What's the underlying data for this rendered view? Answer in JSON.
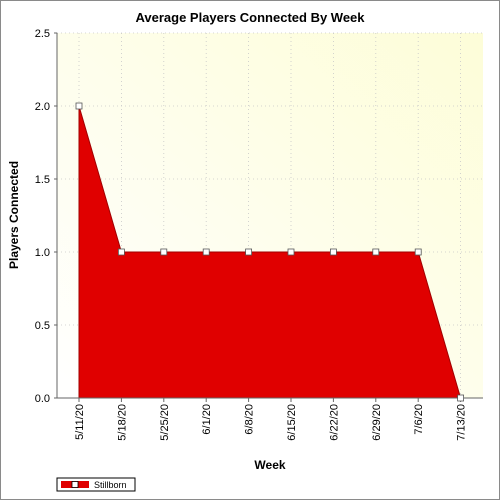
{
  "chart_data": {
    "type": "area",
    "title": "Average Players Connected By Week",
    "xlabel": "Week",
    "ylabel": "Players Connected",
    "categories": [
      "5/11/20",
      "5/18/20",
      "5/25/20",
      "6/1/20",
      "6/8/20",
      "6/15/20",
      "6/22/20",
      "6/29/20",
      "7/6/20",
      "7/13/20"
    ],
    "series": [
      {
        "name": "Stillborn",
        "values": [
          2.0,
          1.0,
          1.0,
          1.0,
          1.0,
          1.0,
          1.0,
          1.0,
          1.0,
          0.0
        ],
        "color": "#e00000"
      }
    ],
    "ylim": [
      0,
      2.5
    ],
    "yticks": [
      "0.0",
      "0.5",
      "1.0",
      "1.5",
      "2.0",
      "2.5"
    ],
    "grid": true,
    "legend_position": "bottom-left",
    "background_gradient": [
      "#ffffff",
      "#fdfdd8"
    ]
  }
}
